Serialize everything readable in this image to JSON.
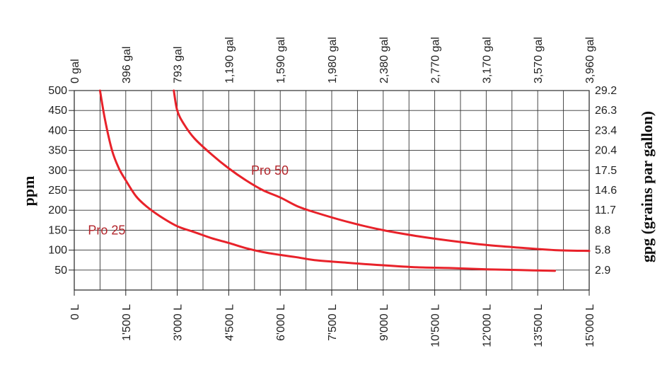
{
  "chart_data": {
    "type": "line",
    "x_bottom": {
      "ticks": [
        "0 L",
        "1'500 L",
        "3'000 L",
        "4'500 L",
        "6'000 L",
        "7'500 L",
        "9'000 L",
        "10'500 L",
        "12'000 L",
        "13'500 L",
        "15'000 L"
      ],
      "values": [
        0,
        1500,
        3000,
        4500,
        6000,
        7500,
        9000,
        10500,
        12000,
        13500,
        15000
      ],
      "range": [
        0,
        15000
      ]
    },
    "x_top": {
      "ticks": [
        "0 gal",
        "396 gal",
        "793 gal",
        "1,190 gal",
        "1,590 gal",
        "1,980 gal",
        "2,380 gal",
        "2,770 gal",
        "3,170 gal",
        "3,570 gal",
        "3,960 gal"
      ]
    },
    "y_left": {
      "label": "ppm",
      "ticks": [
        "500",
        "450",
        "400",
        "350",
        "300",
        "250",
        "200",
        "150",
        "100",
        "50"
      ],
      "values": [
        500,
        450,
        400,
        350,
        300,
        250,
        200,
        150,
        100,
        50
      ],
      "range": [
        0,
        500
      ]
    },
    "y_right": {
      "label": "gpg (grains par gallon)",
      "ticks": [
        "29.2",
        "26.3",
        "23.4",
        "20.4",
        "17.5",
        "14.6",
        "11.7",
        "8.8",
        "5.8",
        "2.9"
      ]
    },
    "grid": true,
    "series": [
      {
        "name": "Pro 25",
        "color": "#e8222a",
        "x": [
          750,
          900,
          1100,
          1300,
          1500,
          1800,
          2100,
          2500,
          3000,
          3500,
          4000,
          4500,
          5000,
          5500,
          6000,
          6500,
          7000,
          8000,
          9000,
          10000,
          11000,
          12000,
          13000,
          14000
        ],
        "y": [
          500,
          425,
          350,
          305,
          275,
          235,
          210,
          185,
          160,
          145,
          130,
          118,
          105,
          95,
          88,
          82,
          75,
          68,
          62,
          57,
          55,
          52,
          50,
          48
        ]
      },
      {
        "name": "Pro 50",
        "color": "#e8222a",
        "x": [
          2900,
          3000,
          3200,
          3500,
          4000,
          4500,
          5000,
          5500,
          6000,
          6500,
          7000,
          8000,
          9000,
          10000,
          11000,
          12000,
          13000,
          14000,
          15000
        ],
        "y": [
          500,
          450,
          415,
          380,
          340,
          305,
          275,
          250,
          232,
          210,
          195,
          170,
          150,
          135,
          123,
          113,
          106,
          100,
          98
        ]
      }
    ],
    "labels": [
      {
        "text": "Pro 25",
        "x": 400,
        "y": 150
      },
      {
        "text": "Pro 50",
        "x": 5150,
        "y": 300
      }
    ]
  }
}
